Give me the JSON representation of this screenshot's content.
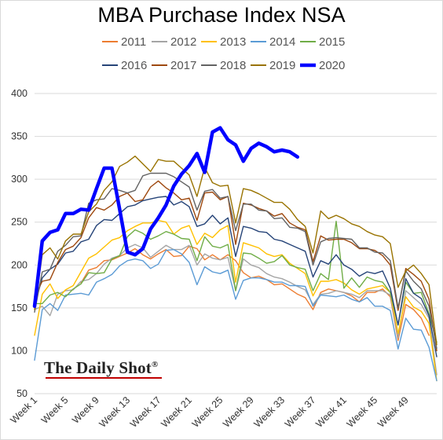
{
  "chart_data": {
    "type": "line",
    "title": "MBA Purchase Index NSA",
    "xlabel": "",
    "ylabel": "",
    "ylim": [
      50,
      400
    ],
    "yticks": [
      50,
      100,
      150,
      200,
      250,
      300,
      350,
      400
    ],
    "x_tick_labels": [
      "Week 1",
      "Week 5",
      "Week 9",
      "Week 13",
      "Week 17",
      "Week 21",
      "Week 25",
      "Week 29",
      "Week 33",
      "Week 37",
      "Week 41",
      "Week 45",
      "Week 49"
    ],
    "x_tick_weeks": [
      1,
      5,
      9,
      13,
      17,
      21,
      25,
      29,
      33,
      37,
      41,
      45,
      49
    ],
    "xlim": [
      1,
      53
    ],
    "grid": true,
    "legend_position": "top",
    "series": [
      {
        "name": "2011",
        "color": "#ed7d31",
        "width": 1.4,
        "values": [
          null,
          null,
          null,
          null,
          null,
          null,
          179,
          194,
          197,
          205,
          206,
          210,
          214,
          219,
          212,
          207,
          213,
          218,
          210,
          211,
          222,
          219,
          206,
          212,
          206,
          212,
          205,
          191,
          185,
          187,
          183,
          177,
          178,
          172,
          166,
          162,
          148,
          168,
          172,
          170,
          168,
          164,
          157,
          168,
          168,
          172,
          163,
          112,
          154,
          148,
          138,
          118,
          null
        ]
      },
      {
        "name": "2012",
        "color": "#a5a5a5",
        "width": 1.4,
        "values": [
          148,
          152,
          141,
          166,
          170,
          171,
          181,
          183,
          190,
          201,
          208,
          211,
          220,
          224,
          220,
          209,
          216,
          223,
          218,
          218,
          223,
          200,
          213,
          208,
          206,
          209,
          170,
          207,
          200,
          197,
          190,
          186,
          184,
          180,
          175,
          171,
          154,
          166,
          167,
          170,
          168,
          166,
          162,
          170,
          170,
          170,
          165,
          115,
          170,
          162,
          154,
          138,
          72
        ]
      },
      {
        "name": "2013",
        "color": "#ffc000",
        "width": 1.4,
        "values": [
          118,
          166,
          178,
          161,
          171,
          176,
          192,
          208,
          213,
          221,
          229,
          232,
          240,
          245,
          249,
          249,
          252,
          250,
          236,
          243,
          246,
          224,
          237,
          232,
          241,
          246,
          180,
          226,
          223,
          220,
          213,
          210,
          212,
          202,
          196,
          190,
          164,
          181,
          181,
          183,
          179,
          171,
          166,
          172,
          174,
          176,
          168,
          120,
          163,
          151,
          146,
          132,
          65
        ]
      },
      {
        "name": "2014",
        "color": "#5b9bd5",
        "width": 1.4,
        "values": [
          89,
          148,
          155,
          147,
          165,
          166,
          167,
          165,
          180,
          184,
          189,
          199,
          205,
          207,
          205,
          196,
          201,
          217,
          218,
          213,
          203,
          177,
          198,
          192,
          190,
          194,
          160,
          182,
          185,
          185,
          183,
          180,
          180,
          176,
          176,
          175,
          152,
          165,
          164,
          163,
          165,
          160,
          157,
          162,
          152,
          152,
          147,
          102,
          138,
          125,
          124,
          104,
          65
        ]
      },
      {
        "name": "2015",
        "color": "#70ad47",
        "width": 1.4,
        "values": [
          155,
          155,
          165,
          168,
          163,
          172,
          178,
          191,
          190,
          191,
          207,
          211,
          233,
          241,
          237,
          230,
          234,
          239,
          236,
          231,
          230,
          205,
          233,
          222,
          220,
          224,
          170,
          214,
          213,
          208,
          202,
          204,
          211,
          200,
          197,
          195,
          170,
          190,
          183,
          251,
          173,
          185,
          174,
          186,
          182,
          180,
          168,
          130,
          180,
          167,
          168,
          143,
          110
        ]
      },
      {
        "name": "2016",
        "color": "#264478",
        "width": 1.4,
        "values": [
          153,
          185,
          195,
          201,
          214,
          216,
          227,
          230,
          246,
          253,
          252,
          260,
          268,
          270,
          275,
          277,
          279,
          280,
          270,
          274,
          268,
          245,
          248,
          258,
          248,
          255,
          210,
          245,
          243,
          239,
          238,
          230,
          228,
          224,
          220,
          216,
          186,
          205,
          201,
          212,
          200,
          195,
          187,
          192,
          190,
          193,
          173,
          130,
          184,
          167,
          161,
          141,
          93
        ]
      },
      {
        "name": "2017",
        "color": "#9e480e",
        "width": 1.4,
        "values": [
          163,
          181,
          183,
          203,
          218,
          222,
          232,
          255,
          267,
          264,
          270,
          280,
          284,
          274,
          276,
          291,
          298,
          290,
          284,
          276,
          278,
          252,
          284,
          285,
          276,
          280,
          224,
          272,
          270,
          266,
          263,
          257,
          260,
          249,
          244,
          241,
          204,
          234,
          229,
          230,
          230,
          226,
          219,
          219,
          217,
          211,
          200,
          147,
          196,
          189,
          181,
          160,
          100
        ]
      },
      {
        "name": "2018",
        "color": "#636363",
        "width": 1.4,
        "values": [
          145,
          192,
          195,
          216,
          223,
          233,
          234,
          272,
          276,
          277,
          289,
          287,
          284,
          287,
          304,
          307,
          307,
          307,
          303,
          297,
          291,
          264,
          286,
          288,
          278,
          280,
          240,
          271,
          271,
          264,
          263,
          254,
          255,
          244,
          243,
          239,
          200,
          227,
          231,
          232,
          231,
          230,
          220,
          220,
          215,
          214,
          205,
          150,
          193,
          181,
          172,
          152,
          103
        ]
      },
      {
        "name": "2019",
        "color": "#997300",
        "width": 1.4,
        "values": [
          148,
          212,
          220,
          207,
          228,
          236,
          236,
          262,
          271,
          287,
          297,
          315,
          320,
          327,
          318,
          309,
          323,
          321,
          321,
          313,
          305,
          280,
          314,
          296,
          292,
          293,
          249,
          289,
          287,
          283,
          278,
          273,
          273,
          265,
          253,
          245,
          214,
          263,
          254,
          258,
          254,
          248,
          245,
          239,
          235,
          233,
          225,
          174,
          193,
          200,
          190,
          177,
          107
        ]
      },
      {
        "name": "2020",
        "color": "#0000ff",
        "width": 4.5,
        "values": [
          152,
          228,
          238,
          241,
          260,
          260,
          265,
          264,
          289,
          313,
          313,
          265,
          215,
          212,
          219,
          242,
          255,
          270,
          292,
          306,
          316,
          330,
          308,
          355,
          360,
          346,
          340,
          321,
          336,
          342,
          338,
          332,
          334,
          332,
          326,
          null,
          null,
          null,
          null,
          null,
          null,
          null,
          null,
          null,
          null,
          null,
          null,
          null,
          null,
          null,
          null,
          null,
          null
        ]
      }
    ]
  },
  "branding": {
    "text": "The Daily Shot",
    "mark": "®"
  }
}
